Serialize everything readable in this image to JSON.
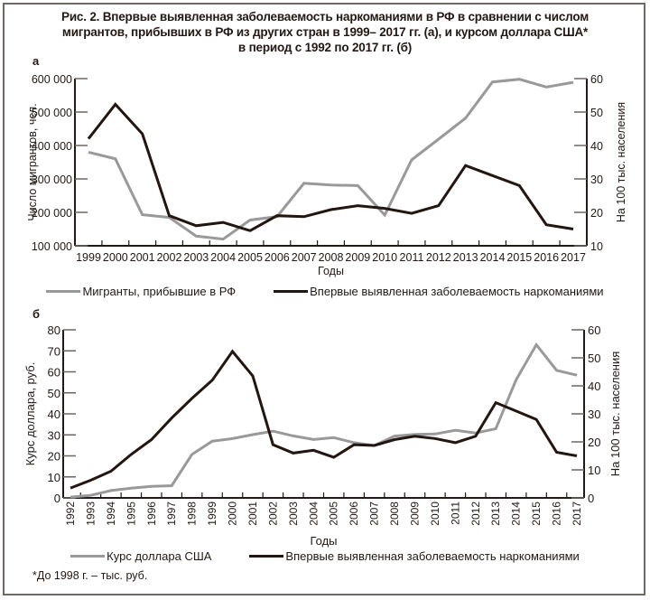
{
  "title_lines": [
    "Рис. 2. Впервые выявленная заболеваемость наркоманиями в РФ в сравнении с числом",
    "мигрантов, прибывших в РФ из других стран в 1999– 2017 гг. (а), и курсом доллара США*",
    "в период с 1992 по 2017 гг. (б)"
  ],
  "colors": {
    "migrants": "#999999",
    "dollar": "#999999",
    "morbidity": "#231510",
    "axis": "#231813"
  },
  "chart_data": [
    {
      "panel_label": "а",
      "type": "line",
      "x": [
        1999,
        2000,
        2001,
        2002,
        2003,
        2004,
        2005,
        2006,
        2007,
        2008,
        2009,
        2010,
        2011,
        2012,
        2013,
        2014,
        2015,
        2016,
        2017
      ],
      "xlabel": "Годы",
      "ylabel_left": "Число мигрантов, чел.",
      "ylabel_right": "На 100 тыс. населения",
      "ylim_left": [
        100000,
        600000
      ],
      "yticks_left": [
        "100 000",
        "200 000",
        "300 000",
        "400 000",
        "500 000",
        "600 000"
      ],
      "ylim_right": [
        10,
        60
      ],
      "yticks_right": [
        "10",
        "20",
        "30",
        "40",
        "50",
        "60"
      ],
      "grid": false,
      "legend_position": "bottom-center",
      "series": [
        {
          "name": "Мигранты, прибывшие в РФ",
          "axis": "left",
          "color_key": "migrants",
          "values": [
            380000,
            360000,
            193000,
            185000,
            129000,
            120000,
            177000,
            187000,
            287000,
            282000,
            280000,
            192000,
            357000,
            419000,
            482000,
            590000,
            598000,
            575000,
            589000
          ]
        },
        {
          "name": "Впервые выявленная заболеваемость наркоманиями",
          "axis": "right",
          "color_key": "morbidity",
          "values": [
            42,
            52.3,
            43.5,
            19,
            16,
            17,
            14.5,
            19,
            18.7,
            20.8,
            22,
            21.2,
            19.7,
            22,
            34,
            31,
            28,
            16.3,
            15
          ]
        }
      ]
    },
    {
      "panel_label": "б",
      "type": "line",
      "x": [
        1992,
        1993,
        1994,
        1995,
        1996,
        1997,
        1998,
        1999,
        2000,
        2001,
        2002,
        2003,
        2004,
        2005,
        2006,
        2007,
        2008,
        2009,
        2010,
        2011,
        2012,
        2013,
        2014,
        2015,
        2016,
        2017
      ],
      "xlabel": "Годы",
      "ylabel_left": "Курс доллара, руб.",
      "ylabel_right": "На 100 тыс. населения",
      "ylim_left": [
        0,
        80
      ],
      "yticks_left": [
        "0",
        "10",
        "20",
        "30",
        "40",
        "50",
        "60",
        "70",
        "80"
      ],
      "ylim_right": [
        0,
        60
      ],
      "yticks_right": [
        "0",
        "10",
        "20",
        "30",
        "40",
        "50",
        "60"
      ],
      "grid": false,
      "legend_position": "bottom-center",
      "series": [
        {
          "name": "Курс доллара США",
          "axis": "left",
          "color_key": "dollar",
          "values": [
            0.4,
            1.2,
            3.5,
            4.6,
            5.5,
            5.8,
            20.7,
            27,
            28.2,
            30.1,
            31.8,
            29.5,
            27.8,
            28.7,
            26.3,
            24.9,
            29.4,
            30.2,
            30.4,
            32.2,
            30.9,
            32.9,
            56.2,
            72.9,
            60.7,
            58.4
          ]
        },
        {
          "name": "Впервые выявленная заболеваемость наркоманиями",
          "axis": "right",
          "color_key": "morbidity",
          "values": [
            3.5,
            6.3,
            9.5,
            15.5,
            20.8,
            28.5,
            35.5,
            42,
            52.3,
            43.5,
            19,
            16,
            17,
            14.5,
            19,
            18.7,
            20.8,
            22,
            21.2,
            19.7,
            22,
            34,
            31,
            28,
            16.3,
            15
          ]
        }
      ]
    }
  ],
  "legend_a": [
    "Мигранты, прибывшие в РФ",
    "Впервые выявленная заболеваемость наркоманиями"
  ],
  "legend_b": [
    "Курс доллара США",
    "Впервые выявленная заболеваемость наркоманиями"
  ],
  "footnote": "*До 1998 г. – тыс. руб."
}
